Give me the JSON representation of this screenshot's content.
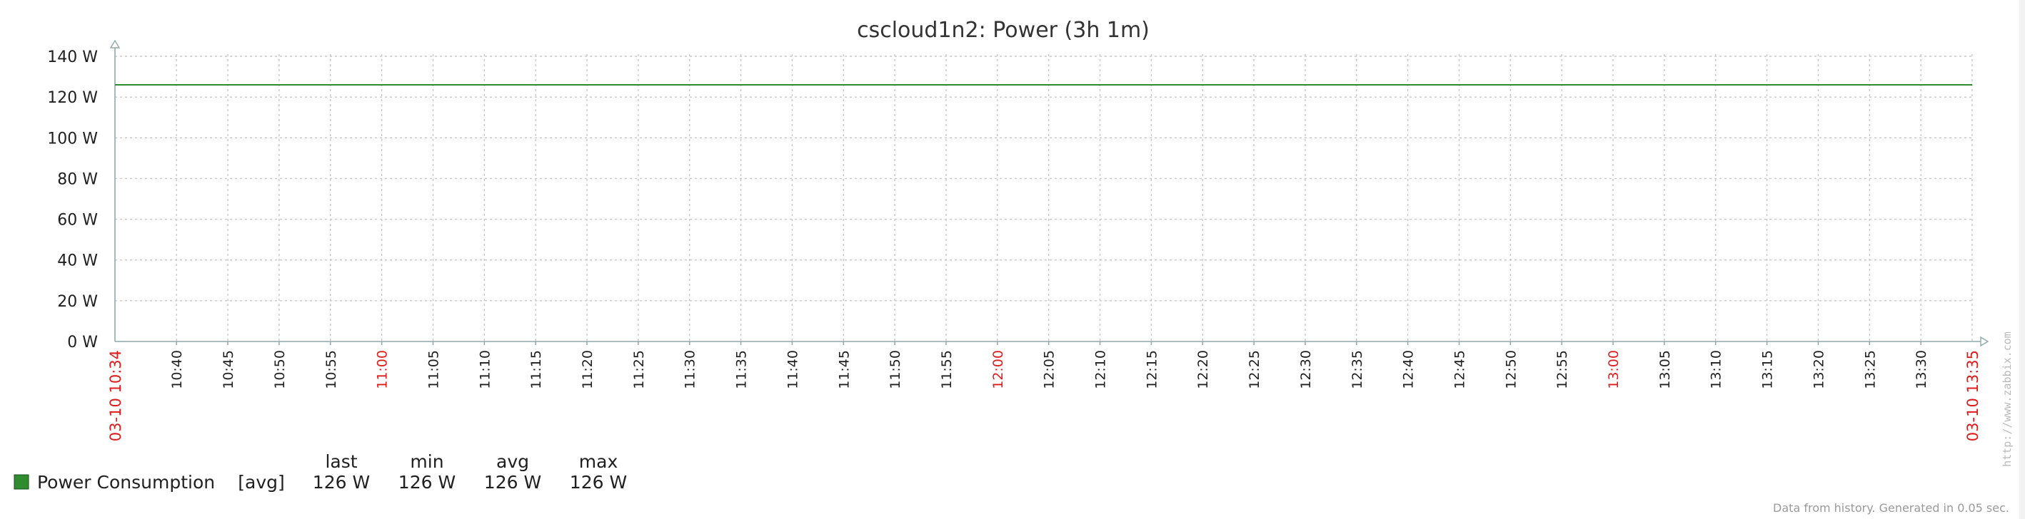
{
  "colors": {
    "series": "#2e8b2e",
    "grid": "#c8c8c8",
    "axis": "#8fa8a8",
    "major_time": "#e01b1b"
  },
  "footer": "Data from history. Generated in 0.05 sec.",
  "watermark": "http://www.zabbix.com",
  "chart_data": {
    "type": "line",
    "title": "cscloud1n2: Power (3h 1m)",
    "y_unit": "W",
    "ylim": [
      0,
      140
    ],
    "y_ticks": [
      "0 W",
      "20 W",
      "40 W",
      "60 W",
      "80 W",
      "100 W",
      "120 W",
      "140 W"
    ],
    "x_start_label": "03-10 10:34",
    "x_end_label": "03-10 13:35",
    "x_ticks": [
      {
        "label": "10:40",
        "major": false
      },
      {
        "label": "10:45",
        "major": false
      },
      {
        "label": "10:50",
        "major": false
      },
      {
        "label": "10:55",
        "major": false
      },
      {
        "label": "11:00",
        "major": true
      },
      {
        "label": "11:05",
        "major": false
      },
      {
        "label": "11:10",
        "major": false
      },
      {
        "label": "11:15",
        "major": false
      },
      {
        "label": "11:20",
        "major": false
      },
      {
        "label": "11:25",
        "major": false
      },
      {
        "label": "11:30",
        "major": false
      },
      {
        "label": "11:35",
        "major": false
      },
      {
        "label": "11:40",
        "major": false
      },
      {
        "label": "11:45",
        "major": false
      },
      {
        "label": "11:50",
        "major": false
      },
      {
        "label": "11:55",
        "major": false
      },
      {
        "label": "12:00",
        "major": true
      },
      {
        "label": "12:05",
        "major": false
      },
      {
        "label": "12:10",
        "major": false
      },
      {
        "label": "12:15",
        "major": false
      },
      {
        "label": "12:20",
        "major": false
      },
      {
        "label": "12:25",
        "major": false
      },
      {
        "label": "12:30",
        "major": false
      },
      {
        "label": "12:35",
        "major": false
      },
      {
        "label": "12:40",
        "major": false
      },
      {
        "label": "12:45",
        "major": false
      },
      {
        "label": "12:50",
        "major": false
      },
      {
        "label": "12:55",
        "major": false
      },
      {
        "label": "13:00",
        "major": true
      },
      {
        "label": "13:05",
        "major": false
      },
      {
        "label": "13:10",
        "major": false
      },
      {
        "label": "13:15",
        "major": false
      },
      {
        "label": "13:20",
        "major": false
      },
      {
        "label": "13:25",
        "major": false
      },
      {
        "label": "13:30",
        "major": false
      }
    ],
    "series": [
      {
        "name": "Power Consumption",
        "function": "[avg]",
        "points": [
          {
            "x": "10:34",
            "y": 126
          },
          {
            "x": "13:35",
            "y": 126
          }
        ],
        "stats": {
          "last": "126 W",
          "min": "126 W",
          "avg": "126 W",
          "max": "126 W"
        }
      }
    ],
    "legend_headers": {
      "last": "last",
      "min": "min",
      "avg": "avg",
      "max": "max"
    },
    "grid": true,
    "legend_position": "bottom-left"
  }
}
